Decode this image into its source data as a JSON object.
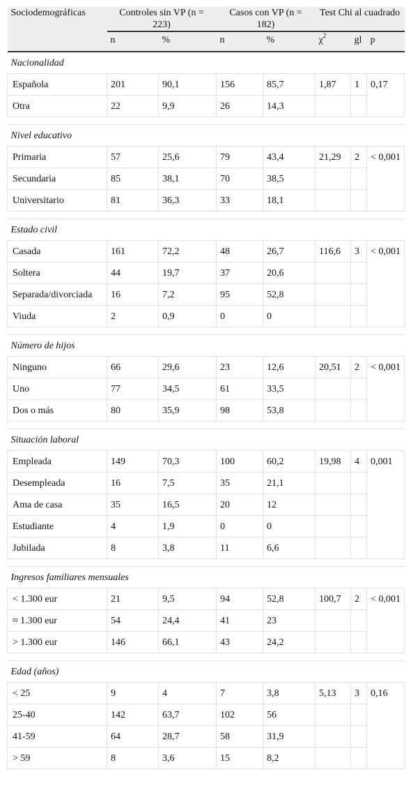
{
  "table": {
    "header": {
      "label": "Sociodemográficas",
      "groups": [
        "Controles sin VP (n = 223)",
        "Casos con VP (n = 182)",
        "Test Chi al cuadrado"
      ],
      "subheaders": [
        "n",
        "%",
        "n",
        "%",
        "χ",
        "gl",
        "p"
      ],
      "chi_superscript": "2"
    },
    "sections": [
      {
        "title": "Nacionalidad",
        "rows": [
          [
            "Española",
            "201",
            "90,1",
            "156",
            "85,7"
          ],
          [
            "Otra",
            "22",
            "9,9",
            "26",
            "14,3"
          ]
        ],
        "test": [
          "1,87",
          "1",
          "0,17"
        ]
      },
      {
        "title": "Nivel educativo",
        "rows": [
          [
            "Primaria",
            "57",
            "25,6",
            "79",
            "43,4"
          ],
          [
            "Secundaria",
            "85",
            "38,1",
            "70",
            "38,5"
          ],
          [
            "Universitario",
            "81",
            "36,3",
            "33",
            "18,1"
          ]
        ],
        "test": [
          "21,29",
          "2",
          "< 0,001"
        ]
      },
      {
        "title": "Estado civil",
        "rows": [
          [
            "Casada",
            "161",
            "72,2",
            "48",
            "26,7"
          ],
          [
            "Soltera",
            "44",
            "19,7",
            "37",
            "20,6"
          ],
          [
            "Separada/divorciada",
            "16",
            "7,2",
            "95",
            "52,8"
          ],
          [
            "Viuda",
            "2",
            "0,9",
            "0",
            "0"
          ]
        ],
        "test": [
          "116,6",
          "3",
          "< 0,001"
        ]
      },
      {
        "title": "Número de hijos",
        "rows": [
          [
            "Ninguno",
            "66",
            "29,6",
            "23",
            "12,6"
          ],
          [
            "Uno",
            "77",
            "34,5",
            "61",
            "33,5"
          ],
          [
            "Dos o más",
            "80",
            "35,9",
            "98",
            "53,8"
          ]
        ],
        "test": [
          "20,51",
          "2",
          "< 0,001"
        ]
      },
      {
        "title": "Situación laboral",
        "rows": [
          [
            "Empleada",
            "149",
            "70,3",
            "100",
            "60,2"
          ],
          [
            "Desempleada",
            "16",
            "7,5",
            "35",
            "21,1"
          ],
          [
            "Ama de casa",
            "35",
            "16,5",
            "20",
            "12"
          ],
          [
            "Estudiante",
            "4",
            "1,9",
            "0",
            "0"
          ],
          [
            "Jubilada",
            "8",
            "3,8",
            "11",
            "6,6"
          ]
        ],
        "test": [
          "19,98",
          "4",
          "0,001"
        ]
      },
      {
        "title": "Ingresos familiares mensuales",
        "rows": [
          [
            "< 1.300 eur",
            "21",
            "9,5",
            "94",
            "52,8"
          ],
          [
            "≈ 1.300 eur",
            "54",
            "24,4",
            "41",
            "23"
          ],
          [
            "> 1.300 eur",
            "146",
            "66,1",
            "43",
            "24,2"
          ]
        ],
        "test": [
          "100,7",
          "2",
          "< 0,001"
        ]
      },
      {
        "title": "Edad (años)",
        "rows": [
          [
            "< 25",
            "9",
            "4",
            "7",
            "3,8"
          ],
          [
            "25-40",
            "142",
            "63,7",
            "102",
            "56"
          ],
          [
            "41-59",
            "64",
            "28,7",
            "58",
            "31,9"
          ],
          [
            "> 59",
            "8",
            "3,6",
            "15",
            "8,2"
          ]
        ],
        "test": [
          "5,13",
          "3",
          "0,16"
        ]
      }
    ]
  }
}
